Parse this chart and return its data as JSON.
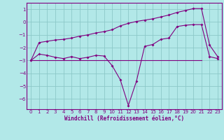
{
  "title": "",
  "xlabel": "Windchill (Refroidissement éolien,°C)",
  "background_color": "#b2e8e8",
  "grid_color": "#a0d0d0",
  "line_color": "#800080",
  "xlim": [
    -0.5,
    23.5
  ],
  "ylim": [
    -6.8,
    1.5
  ],
  "yticks": [
    1,
    0,
    -1,
    -2,
    -3,
    -4,
    -5,
    -6
  ],
  "xticks": [
    0,
    1,
    2,
    3,
    4,
    5,
    6,
    7,
    8,
    9,
    10,
    11,
    12,
    13,
    14,
    15,
    16,
    17,
    18,
    19,
    20,
    21,
    22,
    23
  ],
  "line1_x": [
    0,
    1,
    2,
    3,
    4,
    5,
    6,
    7,
    8,
    9,
    10,
    11,
    12,
    13,
    14,
    15,
    16,
    17,
    18,
    19,
    20,
    21,
    22,
    23
  ],
  "line1_y": [
    -3.0,
    -1.6,
    -1.5,
    -1.4,
    -1.35,
    -1.25,
    -1.1,
    -1.0,
    -0.85,
    -0.75,
    -0.6,
    -0.3,
    -0.1,
    0.05,
    0.15,
    0.25,
    0.4,
    0.55,
    0.75,
    0.9,
    1.05,
    1.05,
    -1.8,
    -2.7
  ],
  "line2_x": [
    0,
    1,
    2,
    3,
    4,
    5,
    6,
    7,
    8,
    9,
    10,
    11,
    12,
    13,
    14,
    15,
    16,
    17,
    18,
    19,
    20,
    21,
    22,
    23
  ],
  "line2_y": [
    -3.0,
    -2.5,
    -2.6,
    -2.75,
    -2.85,
    -2.7,
    -2.85,
    -2.75,
    -2.6,
    -2.65,
    -3.4,
    -4.5,
    -6.5,
    -4.6,
    -1.9,
    -1.75,
    -1.35,
    -1.25,
    -0.35,
    -0.25,
    -0.2,
    -0.2,
    -2.7,
    -2.85
  ],
  "line3_x": [
    0,
    21
  ],
  "line3_y": [
    -3.0,
    -3.0
  ]
}
